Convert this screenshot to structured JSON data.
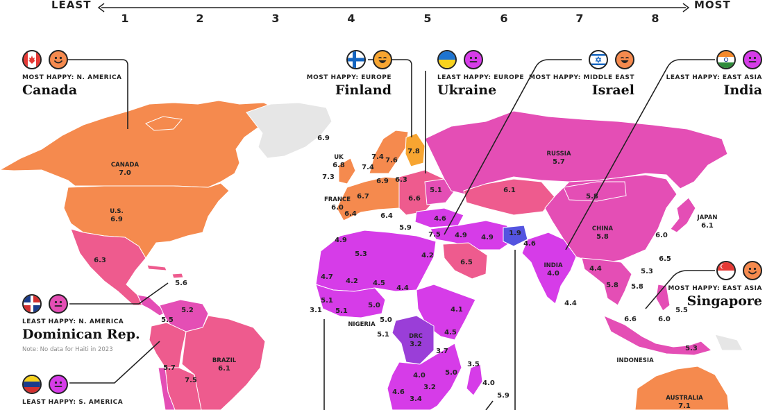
{
  "scale": {
    "least_label": "LEAST",
    "most_label": "MOST",
    "ticks": [
      "1",
      "2",
      "3",
      "4",
      "5",
      "6",
      "7",
      "8"
    ]
  },
  "colors": {
    "score_8": "#f7a531",
    "score_7": "#f58a4e",
    "score_6": "#ee5b8e",
    "score_5": "#e44eb5",
    "score_4": "#d63ce8",
    "score_3": "#9a3ed8",
    "score_1": "#5454e0",
    "no_data": "#e6e6e6"
  },
  "callouts": [
    {
      "id": "canada",
      "region": "MOST HAPPY: N. AMERICA",
      "country": "Canada",
      "flag": "canada-flag-icon",
      "face": "smiling-face-icon"
    },
    {
      "id": "finland",
      "region": "MOST HAPPY: EUROPE",
      "country": "Finland",
      "flag": "finland-flag-icon",
      "face": "grinning-face-icon"
    },
    {
      "id": "ukraine",
      "region": "LEAST HAPPY: EUROPE",
      "country": "Ukraine",
      "flag": "ukraine-flag-icon",
      "face": "neutral-face-icon"
    },
    {
      "id": "israel",
      "region": "MOST HAPPY: MIDDLE EAST",
      "country": "Israel",
      "flag": "israel-flag-icon",
      "face": "grinning-face-icon"
    },
    {
      "id": "india",
      "region": "LEAST HAPPY: EAST ASIA",
      "country": "India",
      "flag": "india-flag-icon",
      "face": "neutral-face-icon"
    },
    {
      "id": "singapore",
      "region": "MOST HAPPY: EAST ASIA",
      "country": "Singapore",
      "flag": "singapore-flag-icon",
      "face": "smiling-face-icon"
    },
    {
      "id": "dominican",
      "region": "LEAST HAPPY: N. AMERICA",
      "country": "Dominican Rep.",
      "note": "Note: No data for Haiti in 2023",
      "flag": "dominican-flag-icon",
      "face": "neutral-face-icon"
    },
    {
      "id": "venezuela",
      "region": "LEAST HAPPY: S. AMERICA",
      "country": "",
      "flag": "venezuela-flag-icon",
      "face": "neutral-face-icon"
    }
  ],
  "countries": [
    {
      "name": "CANADA",
      "score": "7.0"
    },
    {
      "name": "U.S.",
      "score": "6.9"
    },
    {
      "name": "RUSSIA",
      "score": "5.7"
    },
    {
      "name": "CHINA",
      "score": "5.8"
    },
    {
      "name": "INDIA",
      "score": "4.0"
    },
    {
      "name": "BRAZIL",
      "score": "6.1"
    },
    {
      "name": "AUSTRALIA",
      "score": "7.1"
    },
    {
      "name": "DRC",
      "score": "3.2"
    },
    {
      "name": "JAPAN",
      "score": "6.1"
    },
    {
      "name": "UK",
      "score": "6.8"
    },
    {
      "name": "FRANCE",
      "score": "6.0"
    },
    {
      "name": "NIGERIA",
      "score": ""
    },
    {
      "name": "INDONESIA",
      "score": ""
    }
  ],
  "value_labels": [
    "6.3",
    "5.6",
    "5.2",
    "5.5",
    "5.7",
    "7.5",
    "6.9",
    "7.3",
    "7.4",
    "7.6",
    "7.4",
    "7.8",
    "6.9",
    "6.3",
    "6.7",
    "6.6",
    "5.1",
    "6.4",
    "6.4",
    "5.9",
    "4.6",
    "7.5",
    "4.9",
    "4.9",
    "1.9",
    "4.6",
    "6.1",
    "5.8",
    "6.5",
    "4.2",
    "4.9",
    "5.3",
    "4.7",
    "4.2",
    "4.5",
    "4.4",
    "5.1",
    "5.1",
    "5.0",
    "3.1",
    "5.0",
    "5.1",
    "4.1",
    "4.5",
    "3.7",
    "4.0",
    "5.0",
    "3.2",
    "4.6",
    "3.4",
    "3.5",
    "4.0",
    "5.9",
    "6.0",
    "5.3",
    "6.5",
    "4.4",
    "5.8",
    "5.8",
    "4.4",
    "6.6",
    "6.0",
    "5.5",
    "5.3"
  ]
}
